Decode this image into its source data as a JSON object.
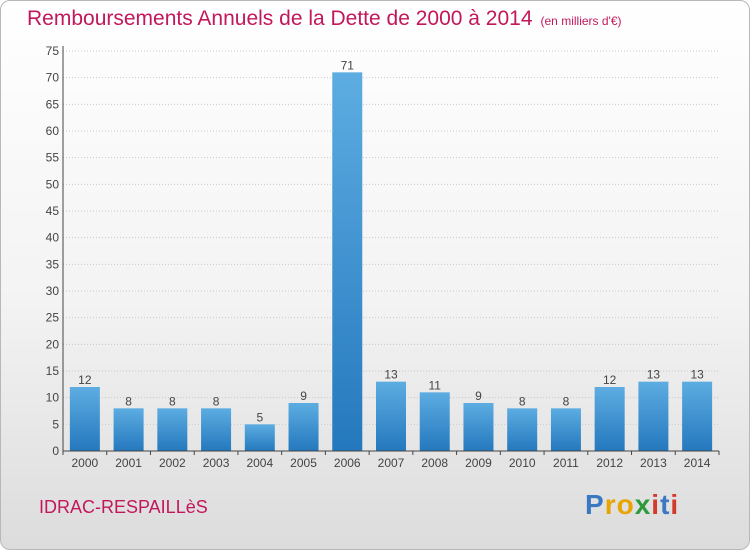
{
  "header": {
    "title": "Remboursements Annuels de la Dette de 2000 à 2014",
    "subtitle": "(en milliers d'€)"
  },
  "footer": {
    "commune": "IDRAC-RESPAILLèS",
    "logo_text": "Proxiti"
  },
  "colors": {
    "title": "#c2185b",
    "bar_light": "#5dade2",
    "bar_dark": "#2478bd",
    "axis": "#444444",
    "grid": "#c8c8c8"
  },
  "chart_data": {
    "type": "bar",
    "title": "Remboursements Annuels de la Dette de 2000 à 2014",
    "subtitle": "(en milliers d'€)",
    "categories": [
      "2000",
      "2001",
      "2002",
      "2003",
      "2004",
      "2005",
      "2006",
      "2007",
      "2008",
      "2009",
      "2010",
      "2011",
      "2012",
      "2013",
      "2014"
    ],
    "values": [
      12,
      8,
      8,
      8,
      5,
      9,
      71,
      13,
      11,
      9,
      8,
      8,
      12,
      13,
      13
    ],
    "ylim": [
      0,
      75
    ],
    "yticks": [
      0,
      5,
      10,
      15,
      20,
      25,
      30,
      35,
      40,
      45,
      50,
      55,
      60,
      65,
      70,
      75
    ],
    "grid": true,
    "data_labels": true
  }
}
